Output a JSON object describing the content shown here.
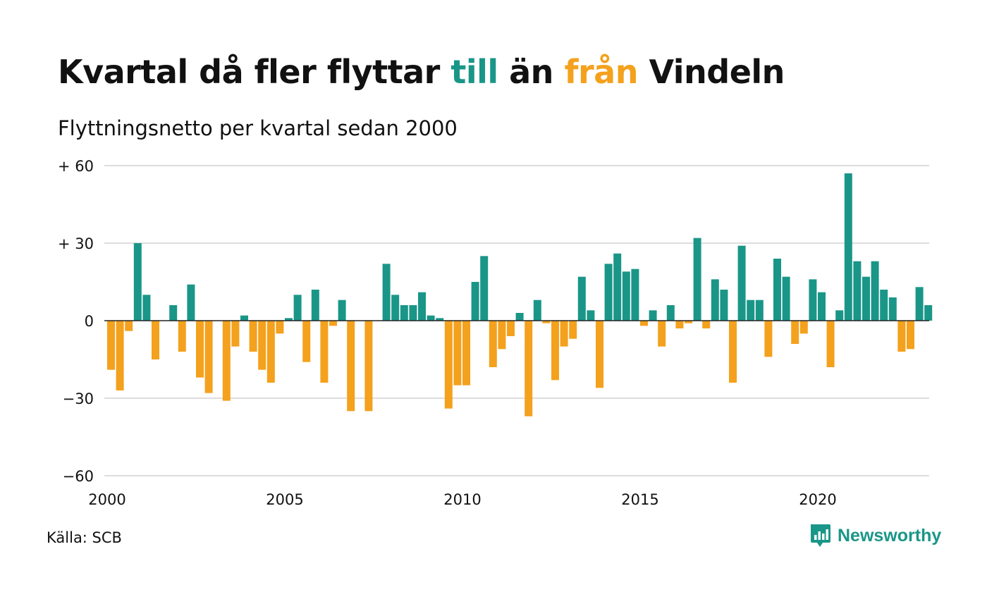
{
  "title": {
    "part1": "Kvartal då fler flyttar ",
    "till": "till",
    "part2": " än ",
    "fran": "från",
    "part3": " Vindeln"
  },
  "subtitle": "Flyttningsnetto per kvartal sedan 2000",
  "source": "Källa: SCB",
  "brand": {
    "name": "Newsworthy",
    "icon": "newsworthy-logo-icon"
  },
  "colors": {
    "positive": "#1a9688",
    "negative": "#f4a11d",
    "grid": "#dddddd",
    "text": "#111111"
  },
  "chart_data": {
    "type": "bar",
    "title": "Kvartal då fler flyttar till än från Vindeln",
    "subtitle": "Flyttningsnetto per kvartal sedan 2000",
    "xlabel": "",
    "ylabel": "",
    "ylim": [
      -60,
      60
    ],
    "yticks": [
      {
        "value": 60,
        "label": "+ 60"
      },
      {
        "value": 30,
        "label": "+ 30"
      },
      {
        "value": 0,
        "label": "0"
      },
      {
        "value": -30,
        "label": "−30"
      },
      {
        "value": -60,
        "label": "−60"
      }
    ],
    "xticks": [
      {
        "year": 2000,
        "label": "2000"
      },
      {
        "year": 2005,
        "label": "2005"
      },
      {
        "year": 2010,
        "label": "2010"
      },
      {
        "year": 2015,
        "label": "2015"
      },
      {
        "year": 2020,
        "label": "2020"
      }
    ],
    "grid": true,
    "legend": "none",
    "start": "2000-Q1",
    "values": [
      -19,
      -27,
      -4,
      30,
      10,
      -15,
      0,
      6,
      -12,
      14,
      -22,
      -28,
      0,
      -31,
      -10,
      2,
      -12,
      -19,
      -24,
      -5,
      1,
      10,
      -16,
      12,
      -24,
      -2,
      8,
      -35,
      0,
      -35,
      0,
      22,
      10,
      6,
      6,
      11,
      2,
      1,
      -34,
      -25,
      -25,
      15,
      25,
      -18,
      -11,
      -6,
      3,
      -37,
      8,
      -1,
      -23,
      -10,
      -7,
      17,
      4,
      -26,
      22,
      26,
      19,
      20,
      -2,
      4,
      -10,
      6,
      -3,
      -1,
      32,
      -3,
      16,
      12,
      -24,
      29,
      8,
      8,
      -14,
      24,
      17,
      -9,
      -5,
      16,
      11,
      -18,
      4,
      57,
      23,
      17,
      23,
      12,
      9,
      -12,
      -11,
      13,
      6
    ]
  }
}
